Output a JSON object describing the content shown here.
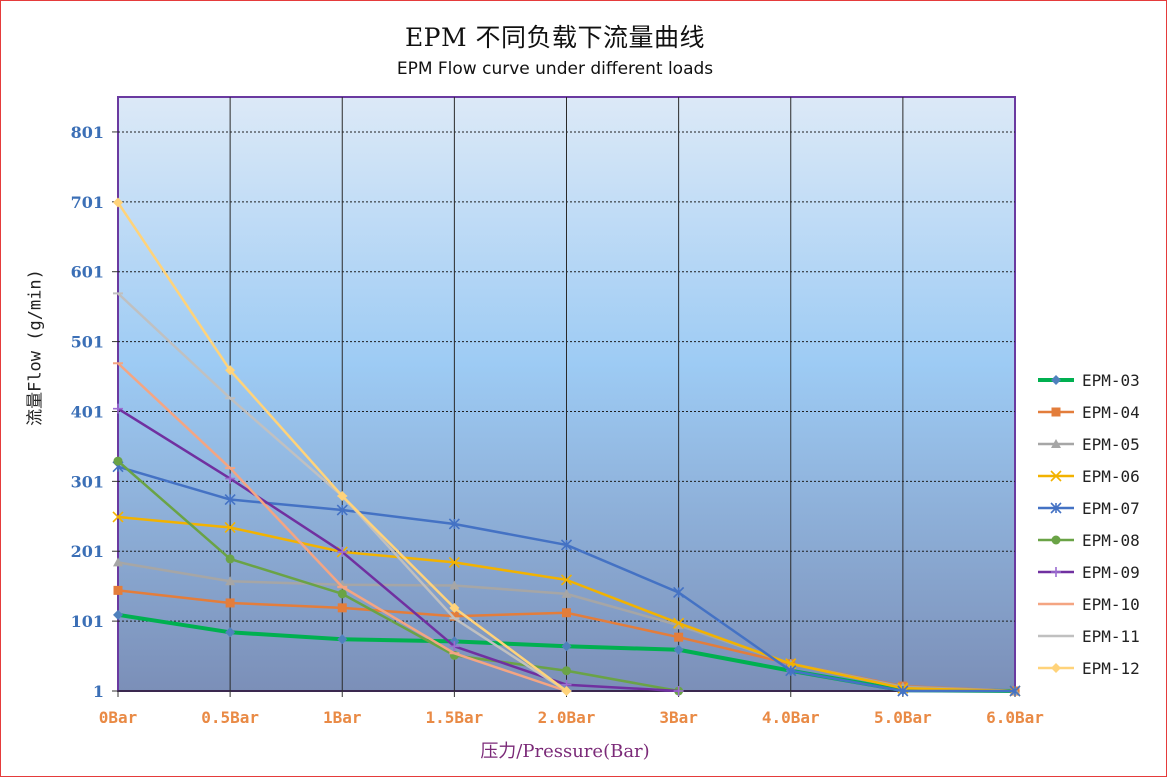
{
  "chart_data": {
    "type": "line",
    "title": "EPM 不同负载下流量曲线",
    "subtitle": "EPM Flow curve under different loads",
    "xlabel": "压力/Pressure(Bar)",
    "ylabel": "流量Flow (g/min)",
    "categories": [
      "0Bar",
      "0.5Bar",
      "1Bar",
      "1.5Bar",
      "2.0Bar",
      "3Bar",
      "4.0Bar",
      "5.0Bar",
      "6.0Bar"
    ],
    "yticks": [
      "1",
      "101",
      "201",
      "301",
      "401",
      "501",
      "601",
      "701",
      "801"
    ],
    "ylim": [
      1,
      851
    ],
    "grid": true,
    "legend_position": "right",
    "series": [
      {
        "name": "EPM-03",
        "color": "#00b050",
        "marker_color": "#4f81bd",
        "marker": "diamond",
        "width": 4,
        "values": [
          110,
          85,
          75,
          72,
          65,
          60,
          30,
          2,
          1
        ]
      },
      {
        "name": "EPM-04",
        "color": "#e37d3b",
        "marker_color": "#e37d3b",
        "marker": "square",
        "width": 2.5,
        "values": [
          145,
          127,
          120,
          108,
          113,
          78,
          40,
          8,
          1
        ]
      },
      {
        "name": "EPM-05",
        "color": "#a6a6a6",
        "marker_color": "#a6a6a6",
        "marker": "triangle",
        "width": 2.5,
        "values": [
          185,
          158,
          153,
          152,
          140,
          95,
          40,
          7,
          1
        ]
      },
      {
        "name": "EPM-06",
        "color": "#f2b200",
        "marker_color": "#f2b200",
        "marker": "x",
        "width": 2.5,
        "values": [
          250,
          235,
          200,
          185,
          160,
          98,
          40,
          5,
          1
        ]
      },
      {
        "name": "EPM-07",
        "color": "#4472c4",
        "marker_color": "#4472c4",
        "marker": "star",
        "width": 2.5,
        "values": [
          322,
          275,
          260,
          240,
          210,
          142,
          30,
          1,
          1
        ]
      },
      {
        "name": "EPM-08",
        "color": "#6aa346",
        "marker_color": "#6aa346",
        "marker": "circle",
        "width": 2.5,
        "values": [
          330,
          190,
          140,
          52,
          30,
          1,
          null,
          null,
          null
        ]
      },
      {
        "name": "EPM-09",
        "color": "#7030a0",
        "marker_color": "#9b6cd1",
        "marker": "plus",
        "width": 2.5,
        "values": [
          405,
          305,
          200,
          65,
          10,
          1,
          null,
          null,
          null
        ]
      },
      {
        "name": "EPM-10",
        "color": "#f4a582",
        "marker_color": "#f4a582",
        "marker": "dash",
        "width": 2.5,
        "values": [
          470,
          320,
          150,
          55,
          1,
          null,
          null,
          null,
          null
        ]
      },
      {
        "name": "EPM-11",
        "color": "#c0c0c0",
        "marker_color": "#c0c0c0",
        "marker": "dash",
        "width": 2.5,
        "values": [
          570,
          420,
          280,
          105,
          1,
          null,
          null,
          null,
          null
        ]
      },
      {
        "name": "EPM-12",
        "color": "#ffd37a",
        "marker_color": "#ffd37a",
        "marker": "diamond",
        "width": 2.5,
        "values": [
          700,
          460,
          280,
          120,
          1,
          null,
          null,
          null,
          null
        ]
      }
    ]
  }
}
